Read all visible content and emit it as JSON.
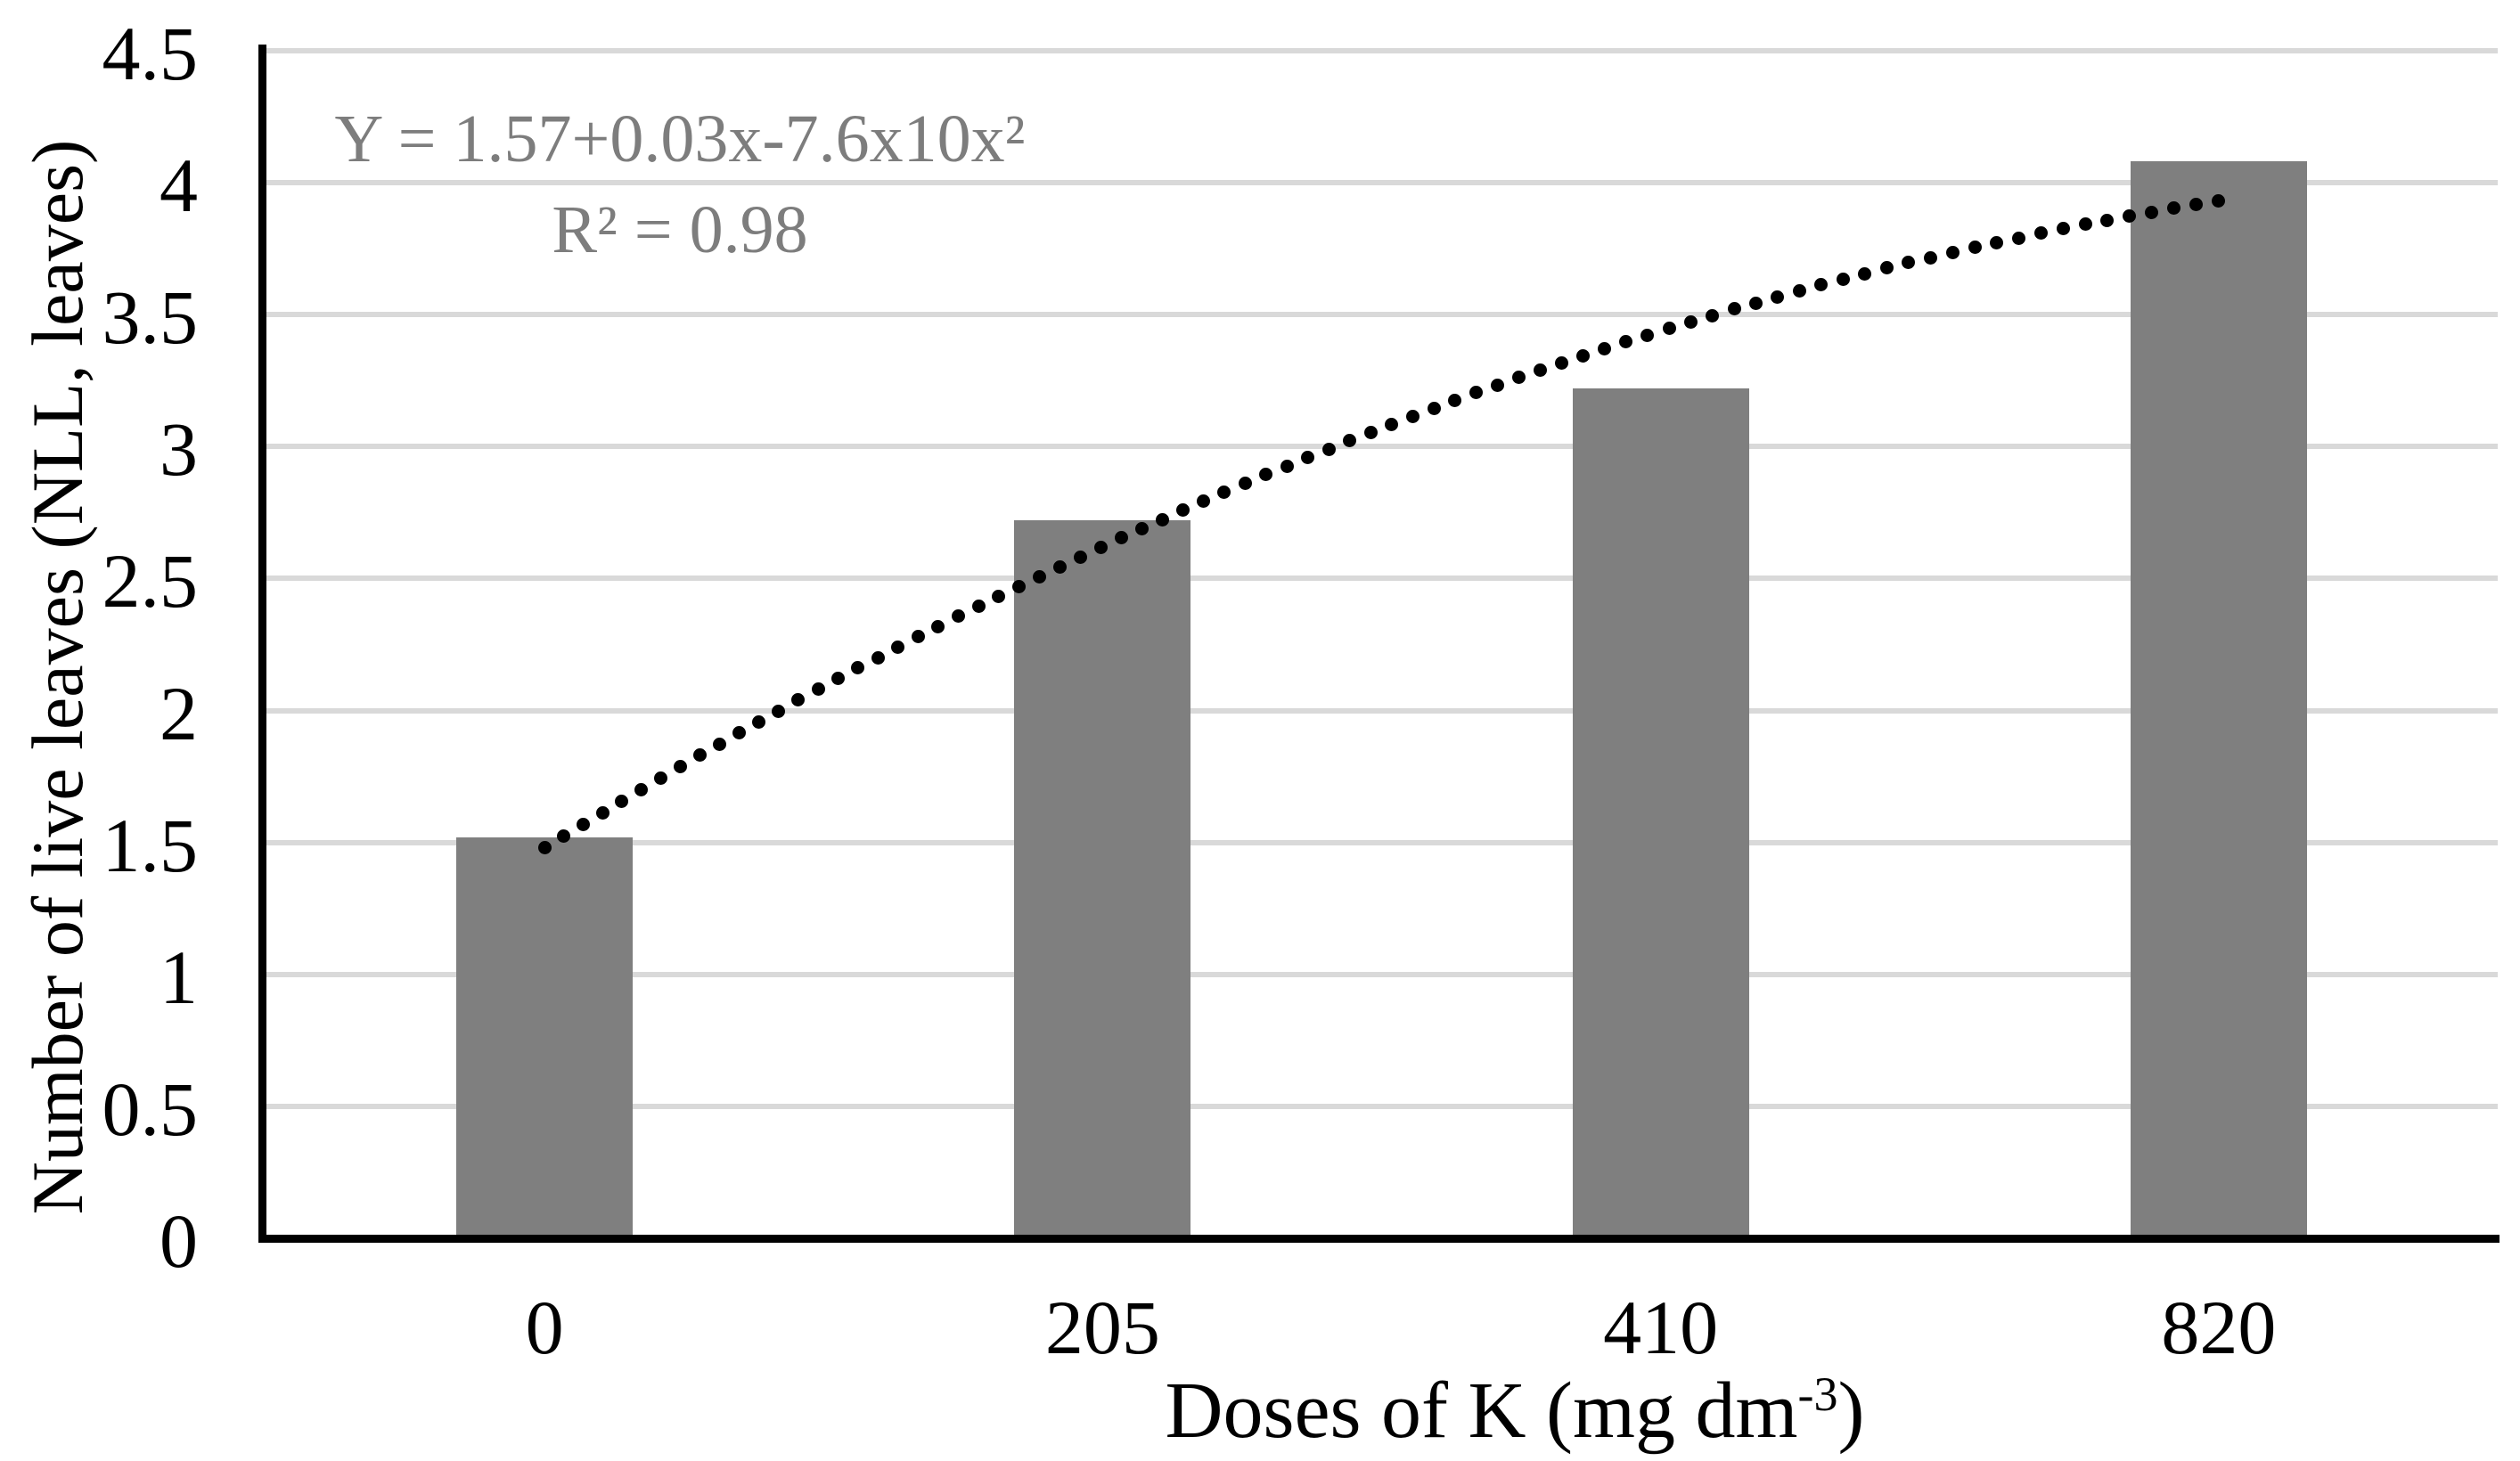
{
  "figure": {
    "background": "#ffffff"
  },
  "equation": {
    "line1": "Y = 1.57+0.03x-7.6x10x²",
    "line2": "R² = 0.98",
    "color": "#7d7d7d"
  },
  "y_axis": {
    "title": "Number of live leaves (NLL, leaves)",
    "tick_labels": [
      "4.5",
      "4",
      "3.5",
      "3",
      "2.5",
      "2",
      "1.5",
      "1",
      "0.5",
      "0"
    ]
  },
  "x_axis": {
    "title_prefix": "Doses of K (mg dm",
    "title_sup": "-3",
    "title_suffix": ")",
    "tick_labels": [
      "0",
      "205",
      "410",
      "820"
    ]
  },
  "chart_data": {
    "type": "bar",
    "categories": [
      "0",
      "205",
      "410",
      "820"
    ],
    "values": [
      1.52,
      2.72,
      3.22,
      4.08
    ],
    "title": "",
    "xlabel": "Doses of K (mg dm-3)",
    "ylabel": "Number of live leaves (NLL, leaves)",
    "ylim": [
      0,
      4.5
    ],
    "ytick_step": 0.5,
    "grid": true,
    "gridline_color": "#d9d9d9",
    "bar_color": "#7f7f7f",
    "axis_color": "#000000",
    "trendline": {
      "style": "dotted",
      "color": "#000000",
      "equation": "Y = 1.57+0.03x-7.6x10x²",
      "r_squared": 0.98,
      "start_value": 1.48,
      "mid_value": 3.07,
      "end_value": 3.93,
      "values_at_categories": [
        1.48,
        2.71,
        3.43,
        3.93
      ]
    }
  }
}
